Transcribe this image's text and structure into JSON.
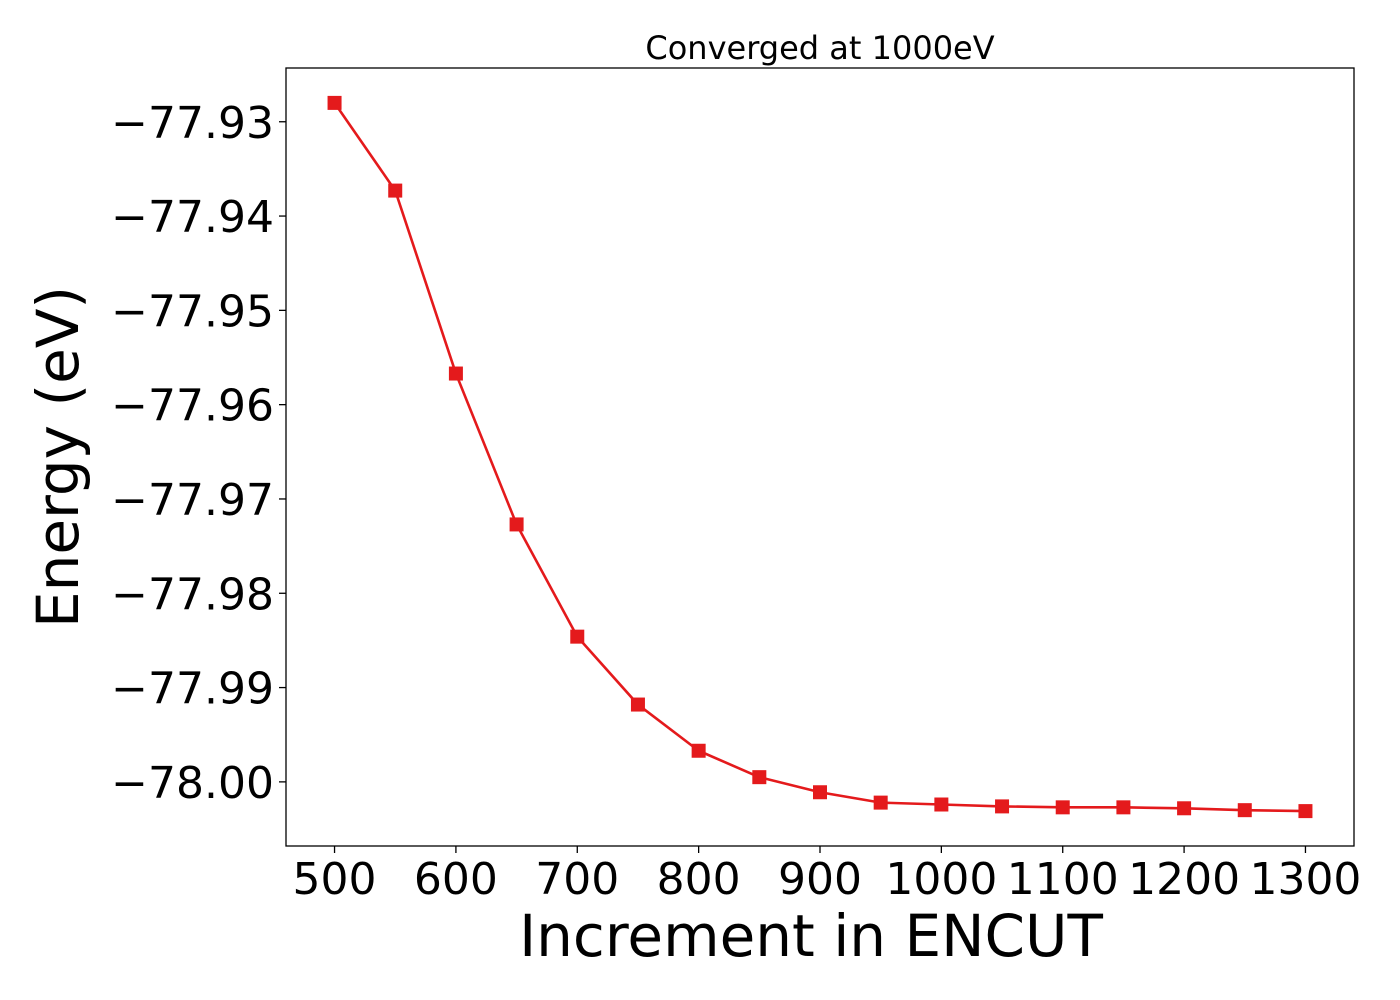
{
  "chart_data": {
    "type": "line",
    "title": "Converged at 1000eV",
    "xlabel": "Increment in ENCUT",
    "ylabel": "Energy (eV)",
    "xlim": [
      460,
      1340
    ],
    "ylim": [
      -78.0068,
      -77.9243
    ],
    "xticks": [
      500,
      600,
      700,
      800,
      900,
      1000,
      1100,
      1200,
      1300
    ],
    "xtick_labels": [
      "500",
      "600",
      "700",
      "800",
      "900",
      "1000",
      "1100",
      "1200",
      "1300"
    ],
    "yticks": [
      -77.93,
      -77.94,
      -77.95,
      -77.96,
      -77.97,
      -77.98,
      -77.99,
      -78.0
    ],
    "ytick_labels": [
      "−77.93",
      "−77.94",
      "−77.95",
      "−77.96",
      "−77.97",
      "−77.98",
      "−77.99",
      "−78.00"
    ],
    "grid": false,
    "legend": "none",
    "series": [
      {
        "color": "#e41a1c",
        "marker": "square",
        "x": [
          500,
          550,
          600,
          650,
          700,
          750,
          800,
          850,
          900,
          950,
          1000,
          1050,
          1100,
          1150,
          1200,
          1250,
          1300
        ],
        "y": [
          -77.928,
          -77.9373,
          -77.9567,
          -77.9727,
          -77.9846,
          -77.9918,
          -77.9967,
          -77.9995,
          -78.0011,
          -78.0022,
          -78.0024,
          -78.0026,
          -78.0027,
          -78.0027,
          -78.0028,
          -78.003,
          -78.0031
        ]
      }
    ]
  }
}
